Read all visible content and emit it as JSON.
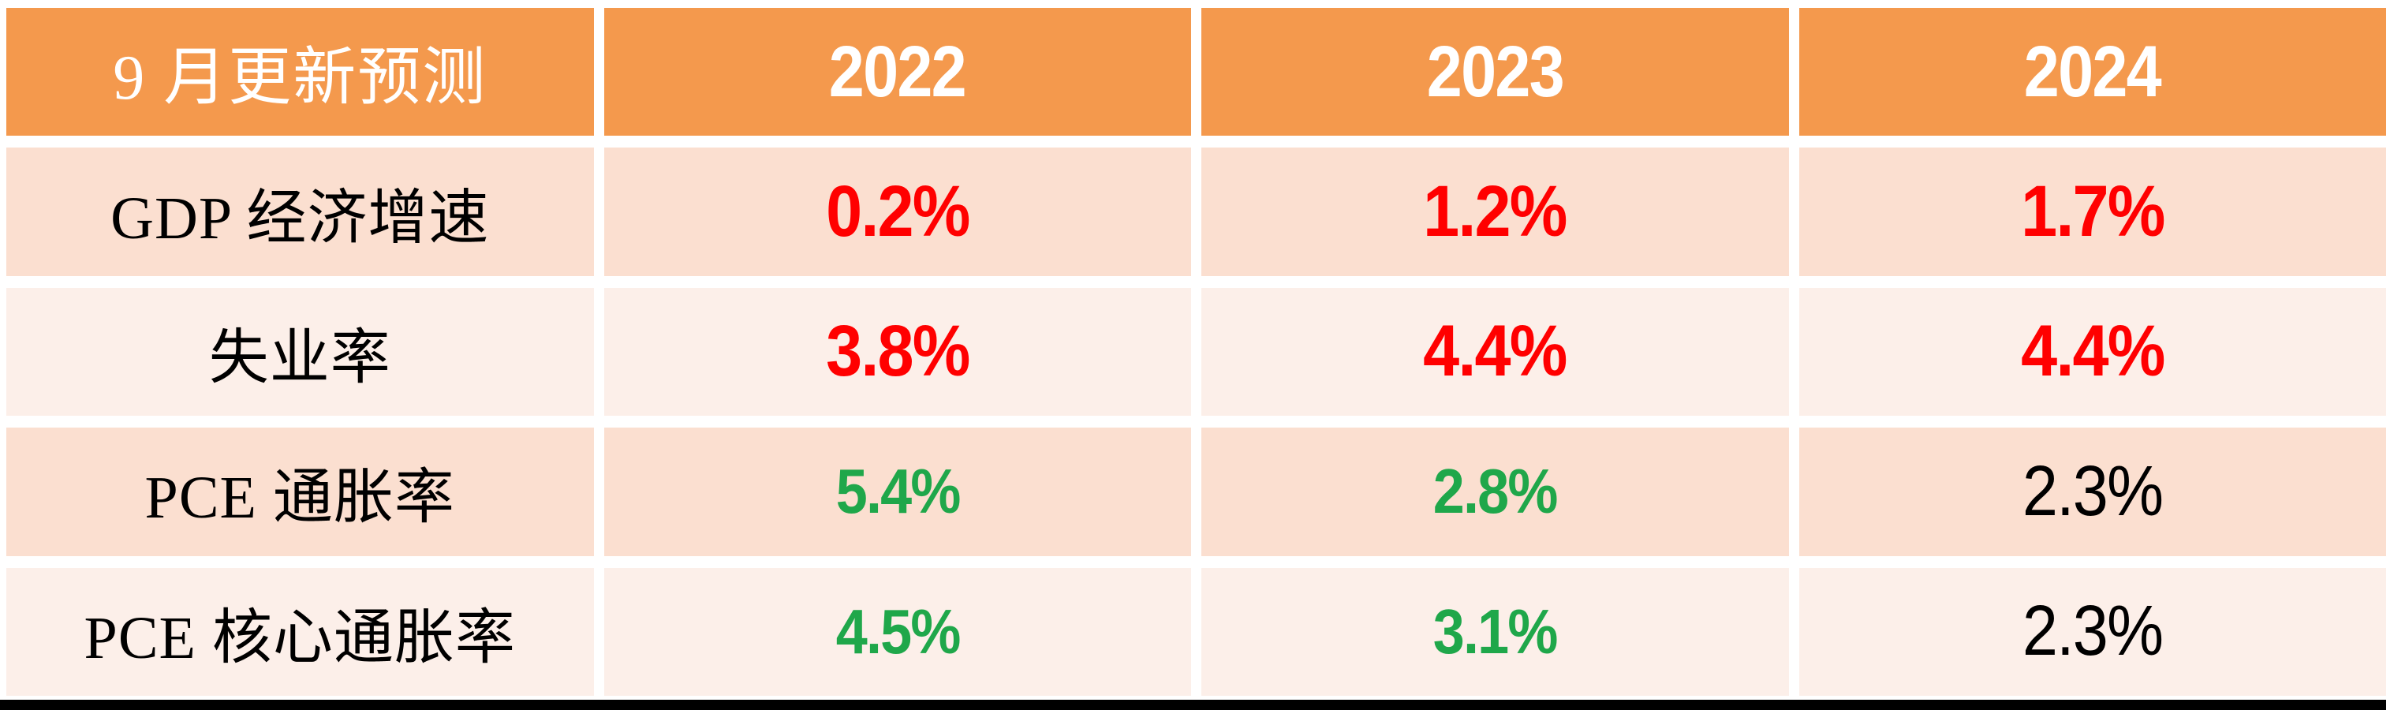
{
  "colors": {
    "header_bg": "#F4994D",
    "row_pink": "#FBDFD0",
    "row_light_pink": "#FCEFE9",
    "value_red": "#FF0000",
    "value_green": "#1FA74A",
    "value_black": "#000000",
    "header_text": "#FFFFFF",
    "bottom_bar": "#000000"
  },
  "chart_data": {
    "type": "table",
    "title": "9 月更新预测",
    "columns": [
      "9 月更新预测",
      "2022",
      "2023",
      "2024"
    ],
    "rows": [
      {
        "label": "GDP 经济增速",
        "values": [
          "0.2%",
          "1.2%",
          "1.7%"
        ],
        "value_colors": [
          "red",
          "red",
          "red"
        ]
      },
      {
        "label": "失业率",
        "values": [
          "3.8%",
          "4.4%",
          "4.4%"
        ],
        "value_colors": [
          "red",
          "red",
          "red"
        ]
      },
      {
        "label": "PCE 通胀率",
        "values": [
          "5.4%",
          "2.8%",
          "2.3%"
        ],
        "value_colors": [
          "green",
          "green",
          "black"
        ]
      },
      {
        "label": "PCE 核心通胀率",
        "values": [
          "4.5%",
          "3.1%",
          "2.3%"
        ],
        "value_colors": [
          "green",
          "green",
          "black"
        ]
      }
    ]
  }
}
